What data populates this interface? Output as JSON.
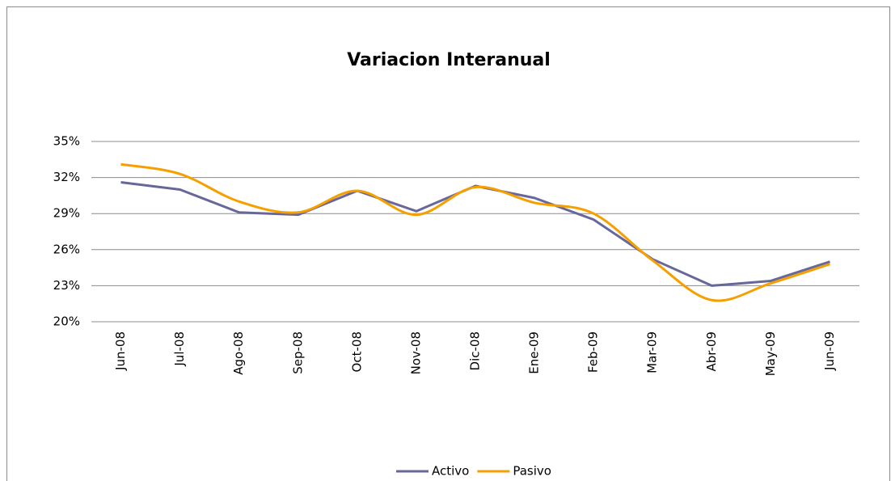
{
  "chart_data": {
    "type": "line",
    "title": "Variacion Interanual",
    "categories": [
      "Jun-08",
      "Jul-08",
      "Ago-08",
      "Sep-08",
      "Oct-08",
      "Nov-08",
      "Dic-08",
      "Ene-09",
      "Feb-09",
      "Mar-09",
      "Abr-09",
      "May-09",
      "Jun-09"
    ],
    "series": [
      {
        "name": "Activo",
        "color": "#67679a",
        "smooth": false,
        "values": [
          31.6,
          31.0,
          29.1,
          28.9,
          30.9,
          29.2,
          31.3,
          30.3,
          28.5,
          25.2,
          23.0,
          23.4,
          25.0
        ]
      },
      {
        "name": "Pasivo",
        "color": "#f5a000",
        "smooth": true,
        "values": [
          33.1,
          32.3,
          30.0,
          29.1,
          30.9,
          28.9,
          31.2,
          29.9,
          29.0,
          25.1,
          21.8,
          23.2,
          24.8
        ]
      }
    ],
    "ylim": [
      20,
      35
    ],
    "yticks": [
      {
        "value": 20,
        "label": "20%"
      },
      {
        "value": 23,
        "label": "23%"
      },
      {
        "value": 26,
        "label": "26%"
      },
      {
        "value": 29,
        "label": "29%"
      },
      {
        "value": 32,
        "label": "32%"
      },
      {
        "value": 35,
        "label": "35%"
      }
    ],
    "grid": true,
    "legend": "bottom"
  }
}
